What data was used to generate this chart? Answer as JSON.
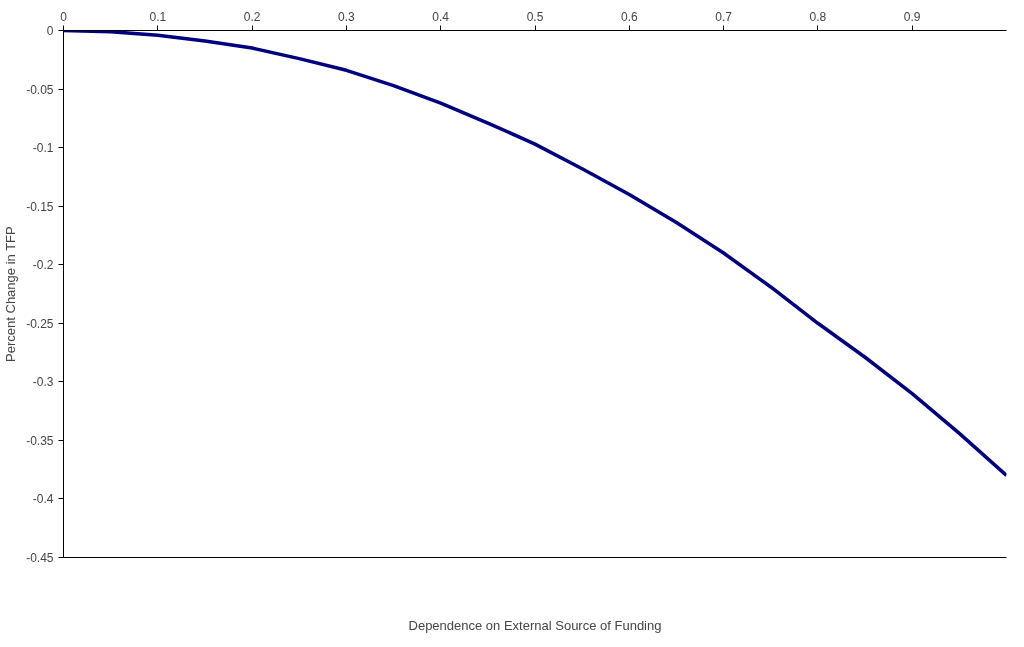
{
  "chart_data": {
    "type": "line",
    "xlabel": "Dependence on External Source of Funding",
    "ylabel": "Percent Change in TFP",
    "x": [
      0,
      0.05,
      0.1,
      0.15,
      0.2,
      0.25,
      0.3,
      0.35,
      0.4,
      0.45,
      0.5,
      0.55,
      0.6,
      0.65,
      0.7,
      0.75,
      0.8,
      0.85,
      0.9,
      0.95,
      1.0
    ],
    "series": [
      {
        "color": "#000080",
        "values": [
          0,
          -0.001,
          -0.004,
          -0.009,
          -0.015,
          -0.024,
          -0.034,
          -0.047,
          -0.062,
          -0.079,
          -0.097,
          -0.118,
          -0.14,
          -0.164,
          -0.19,
          -0.219,
          -0.25,
          -0.279,
          -0.31,
          -0.344,
          -0.38
        ]
      }
    ],
    "xlim": [
      0,
      1
    ],
    "ylim": [
      -0.45,
      0
    ],
    "xticks": [
      0,
      0.1,
      0.2,
      0.3,
      0.4,
      0.5,
      0.6,
      0.7,
      0.8,
      0.9
    ],
    "yticks": [
      0,
      -0.05,
      -0.1,
      -0.15,
      -0.2,
      -0.25,
      -0.3,
      -0.35,
      -0.4,
      -0.45
    ],
    "grid": false,
    "marker": "none",
    "line_style": "solid"
  }
}
